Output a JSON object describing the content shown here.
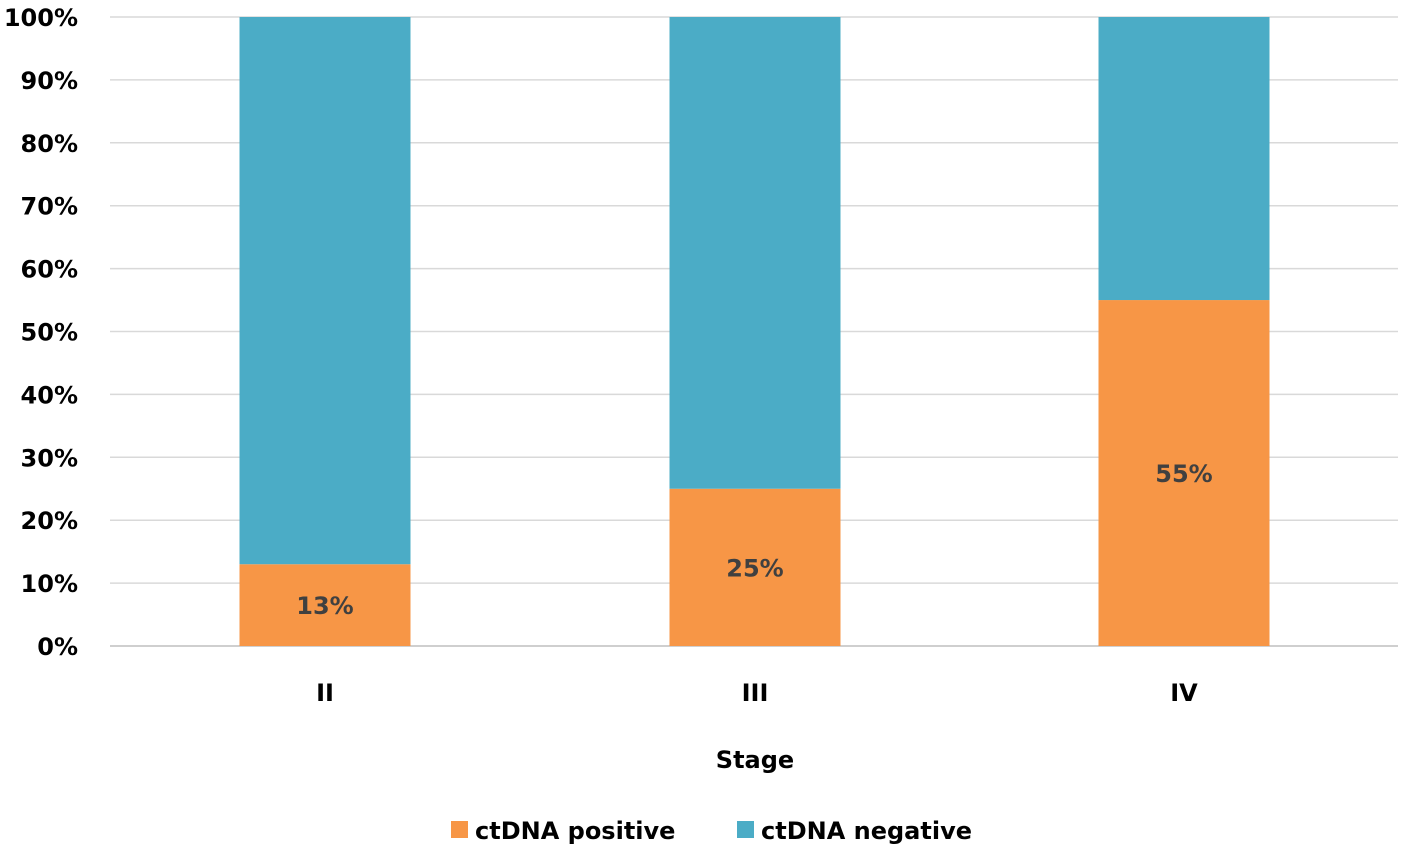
{
  "chart_data": {
    "type": "bar",
    "stacked": true,
    "categories": [
      "II",
      "III",
      "IV"
    ],
    "series": [
      {
        "name": "ctDNA positive",
        "values": [
          13,
          25,
          55
        ],
        "color": "#f79646",
        "labels": [
          "13%",
          "25%",
          "55%"
        ]
      },
      {
        "name": "ctDNA negative",
        "values": [
          87,
          75,
          45
        ],
        "color": "#4bacc6"
      }
    ],
    "title": "",
    "xlabel": "Stage",
    "ylabel": "",
    "ylim": [
      0,
      100
    ],
    "yticks": [
      0,
      10,
      20,
      30,
      40,
      50,
      60,
      70,
      80,
      90,
      100
    ],
    "ytick_labels": [
      "0%",
      "10%",
      "20%",
      "30%",
      "40%",
      "50%",
      "60%",
      "70%",
      "80%",
      "90%",
      "100%"
    ],
    "grid": true,
    "legend_position": "bottom"
  }
}
